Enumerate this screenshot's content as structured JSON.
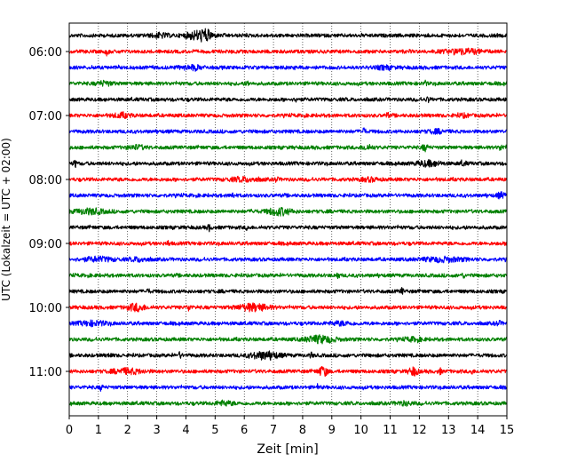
{
  "chart_data": {
    "type": "line",
    "title": "",
    "xlabel": "Zeit  [min]",
    "ylabel": "UTC (Lokalzeit = UTC + 02:00)",
    "xlim": [
      0,
      15
    ],
    "x_ticks": [
      "0",
      "1",
      "2",
      "3",
      "4",
      "5",
      "6",
      "7",
      "8",
      "9",
      "10",
      "11",
      "12",
      "13",
      "14",
      "15"
    ],
    "y_ticks": [
      "06:00",
      "07:00",
      "08:00",
      "09:00",
      "10:00",
      "11:00"
    ],
    "grid": "vertical dotted at every minute",
    "trace_colors": [
      "#000000",
      "#ff0000",
      "#0000ff",
      "#008000"
    ],
    "traces": [
      {
        "start": "05:45",
        "color": "#000000",
        "bursts": [
          [
            4.4,
            0.4,
            4.5
          ],
          [
            4.7,
            0.2,
            3.5
          ],
          [
            3.1,
            0.3,
            2.0
          ]
        ]
      },
      {
        "start": "06:00",
        "color": "#ff0000",
        "bursts": [
          [
            13.5,
            0.6,
            2.5
          ],
          [
            1.3,
            0.05,
            3.5
          ]
        ]
      },
      {
        "start": "06:15",
        "color": "#0000ff",
        "bursts": [
          [
            4.2,
            0.4,
            1.8
          ],
          [
            10.8,
            0.3,
            1.5
          ]
        ]
      },
      {
        "start": "06:30",
        "color": "#008000",
        "bursts": [
          [
            1.2,
            0.25,
            2.0
          ],
          [
            6.1,
            0.05,
            2.5
          ],
          [
            12.2,
            0.05,
            2.0
          ]
        ]
      },
      {
        "start": "06:45",
        "color": "#000000",
        "bursts": [
          [
            7.8,
            0.05,
            3.0
          ],
          [
            12.3,
            0.05,
            3.0
          ]
        ]
      },
      {
        "start": "07:00",
        "color": "#ff0000",
        "bursts": [
          [
            1.8,
            0.3,
            2.0
          ],
          [
            10.9,
            0.05,
            3.0
          ],
          [
            13.5,
            0.2,
            1.5
          ]
        ]
      },
      {
        "start": "07:15",
        "color": "#0000ff",
        "bursts": [
          [
            10.1,
            0.05,
            3.5
          ],
          [
            12.6,
            0.3,
            1.5
          ]
        ]
      },
      {
        "start": "07:30",
        "color": "#008000",
        "bursts": [
          [
            2.3,
            0.3,
            1.8
          ],
          [
            10.2,
            0.2,
            2.0
          ],
          [
            12.2,
            0.1,
            3.0
          ],
          [
            14.8,
            0.1,
            2.0
          ]
        ]
      },
      {
        "start": "07:45",
        "color": "#000000",
        "bursts": [
          [
            0.2,
            0.05,
            3.5
          ],
          [
            12.3,
            0.4,
            2.5
          ],
          [
            13.5,
            0.1,
            2.0
          ]
        ]
      },
      {
        "start": "08:00",
        "color": "#ff0000",
        "bursts": [
          [
            6.0,
            0.5,
            1.8
          ],
          [
            7.1,
            0.05,
            3.0
          ],
          [
            10.3,
            0.3,
            1.5
          ]
        ]
      },
      {
        "start": "08:15",
        "color": "#0000ff",
        "bursts": [
          [
            5.6,
            0.05,
            3.0
          ],
          [
            14.8,
            0.15,
            2.5
          ]
        ]
      },
      {
        "start": "08:30",
        "color": "#008000",
        "bursts": [
          [
            0.7,
            0.5,
            2.5
          ],
          [
            7.2,
            0.4,
            3.5
          ],
          [
            6.3,
            0.05,
            2.5
          ]
        ]
      },
      {
        "start": "08:45",
        "color": "#000000",
        "bursts": [
          [
            4.8,
            0.05,
            3.0
          ],
          [
            6.1,
            0.05,
            2.0
          ]
        ]
      },
      {
        "start": "09:00",
        "color": "#ff0000",
        "bursts": [
          [
            3.4,
            0.05,
            2.5
          ]
        ]
      },
      {
        "start": "09:15",
        "color": "#0000ff",
        "bursts": [
          [
            1.0,
            0.5,
            2.0
          ],
          [
            2.4,
            0.3,
            1.8
          ],
          [
            12.8,
            0.7,
            2.0
          ]
        ]
      },
      {
        "start": "09:30",
        "color": "#008000",
        "bursts": [
          [
            9.2,
            0.05,
            3.0
          ],
          [
            13.5,
            0.05,
            2.0
          ]
        ]
      },
      {
        "start": "09:45",
        "color": "#000000",
        "bursts": [
          [
            11.4,
            0.05,
            3.0
          ],
          [
            2.7,
            0.05,
            2.0
          ]
        ]
      },
      {
        "start": "10:00",
        "color": "#ff0000",
        "bursts": [
          [
            2.3,
            0.3,
            3.5
          ],
          [
            4.1,
            0.05,
            4.0
          ],
          [
            6.3,
            0.5,
            3.5
          ]
        ]
      },
      {
        "start": "10:15",
        "color": "#0000ff",
        "bursts": [
          [
            0.8,
            0.5,
            2.0
          ],
          [
            9.3,
            0.4,
            1.5
          ],
          [
            14.7,
            0.1,
            2.0
          ]
        ]
      },
      {
        "start": "10:30",
        "color": "#008000",
        "bursts": [
          [
            8.6,
            0.5,
            3.5
          ],
          [
            11.8,
            0.3,
            1.5
          ]
        ]
      },
      {
        "start": "10:45",
        "color": "#000000",
        "bursts": [
          [
            6.7,
            0.5,
            3.5
          ],
          [
            3.8,
            0.05,
            3.0
          ],
          [
            1.4,
            0.05,
            2.5
          ],
          [
            8.3,
            0.05,
            2.5
          ]
        ]
      },
      {
        "start": "11:00",
        "color": "#ff0000",
        "bursts": [
          [
            2.0,
            0.5,
            2.5
          ],
          [
            8.7,
            0.15,
            5.0
          ],
          [
            11.8,
            0.15,
            4.0
          ],
          [
            12.7,
            0.05,
            3.0
          ],
          [
            13.8,
            0.05,
            2.5
          ]
        ]
      },
      {
        "start": "11:15",
        "color": "#0000ff",
        "bursts": [
          [
            1.1,
            0.05,
            3.0
          ],
          [
            8.5,
            0.05,
            2.5
          ]
        ]
      },
      {
        "start": "11:30",
        "color": "#008000",
        "bursts": [
          [
            5.3,
            0.3,
            2.0
          ],
          [
            11.5,
            0.3,
            1.5
          ]
        ]
      }
    ]
  }
}
